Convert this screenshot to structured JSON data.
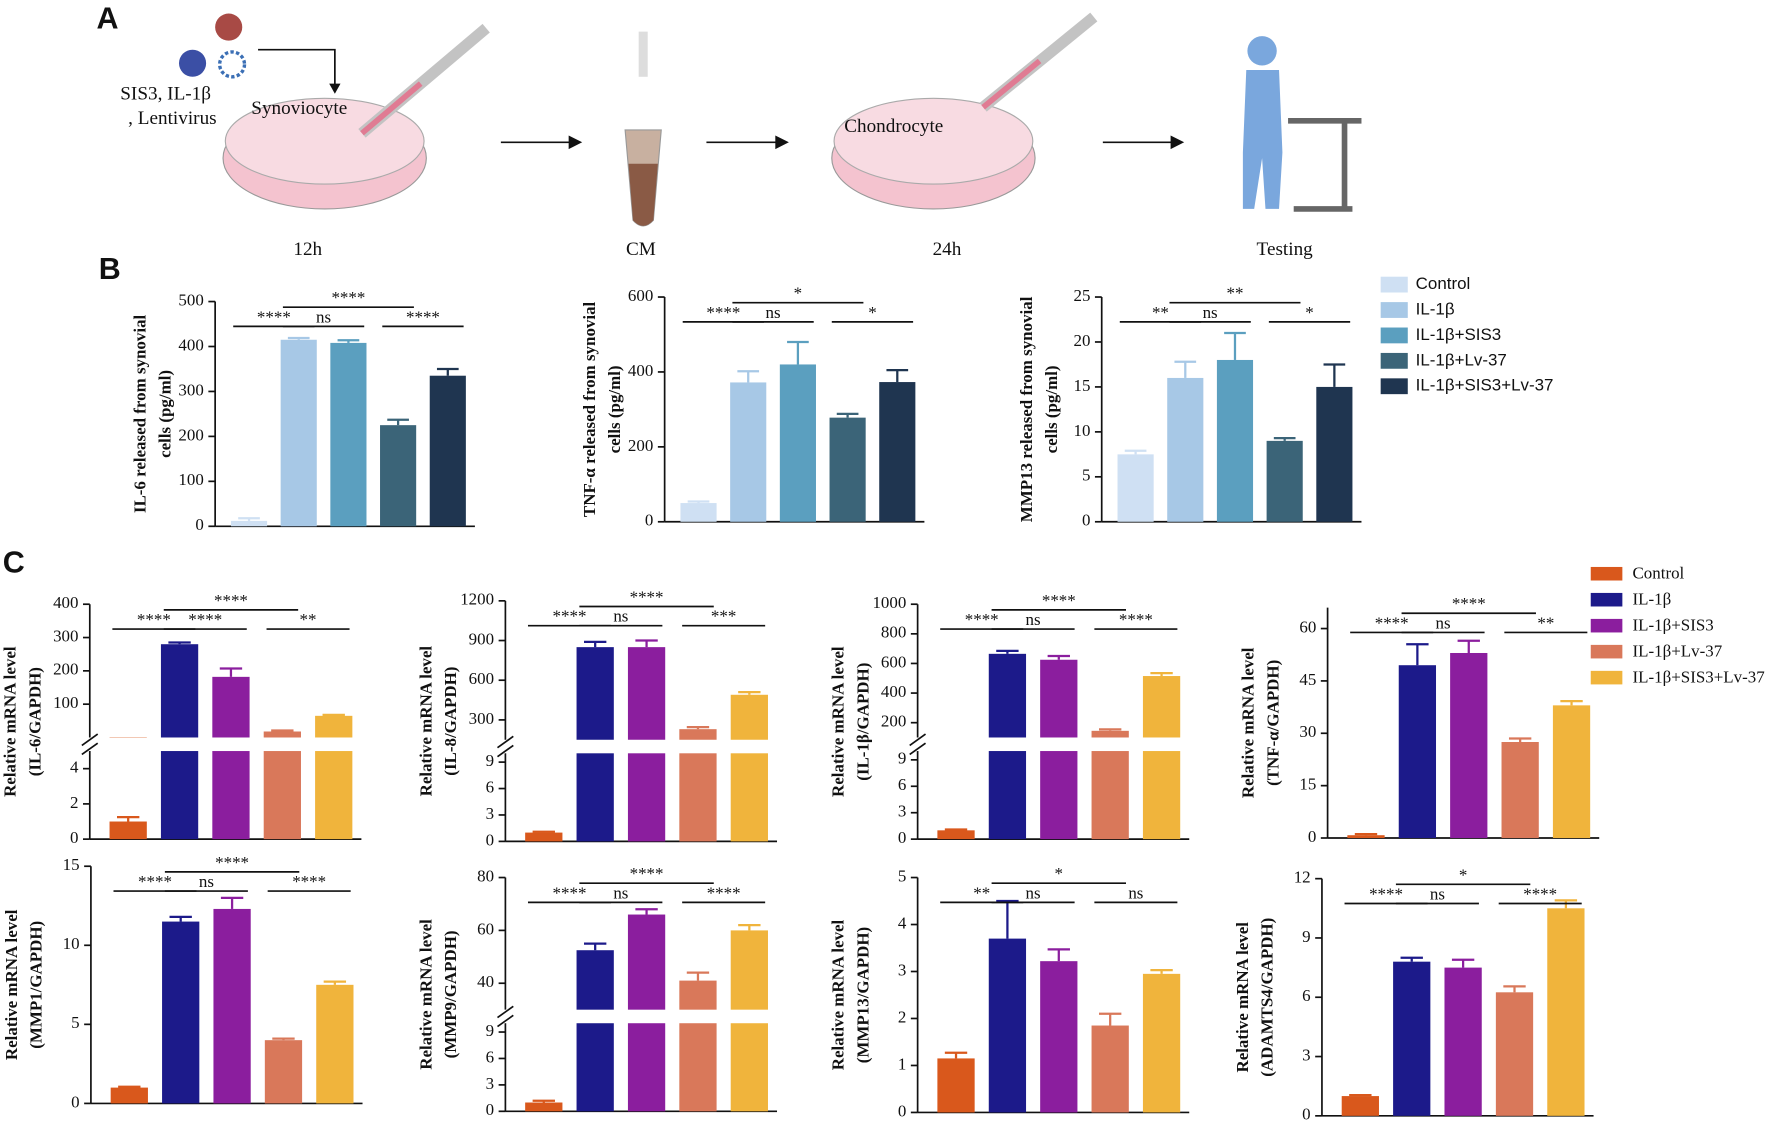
{
  "panel_a": {
    "letter": "A",
    "treatment": [
      "SIS3, IL-1β",
      ", Lentivirus"
    ],
    "dish1": "Synoviocyte",
    "dish2": "Chondrocyte",
    "steps": [
      "12h",
      "CM",
      "24h",
      "Testing"
    ]
  },
  "panel_b": {
    "letter": "B"
  },
  "panel_c": {
    "letter": "C"
  },
  "chart_data": [
    {
      "type": "bar",
      "ylabel": [
        "IL-6 released from synovial",
        "cells (pg/ml)"
      ],
      "values": [
        12,
        415,
        408,
        225,
        335
      ],
      "errors": [
        6,
        4,
        6,
        12,
        15
      ],
      "colors": [
        "#cfe0f3",
        "#a7c8e6",
        "#5b9fbf",
        "#3b6478",
        "#1f3550"
      ],
      "ylim": [
        0,
        500
      ],
      "yticks": [
        0,
        100,
        200,
        300,
        400,
        500
      ],
      "brackets": [
        {
          "label": "****",
          "from": 0,
          "to": 1
        },
        {
          "label": "ns",
          "from": 1,
          "to": 2
        },
        {
          "label": "****",
          "from": 1,
          "to": 3
        },
        {
          "label": "****",
          "from": 3,
          "to": 4
        }
      ]
    },
    {
      "type": "bar",
      "ylabel": [
        "TNF-α released from synovial",
        "cells (pg/ml)"
      ],
      "values": [
        50,
        372,
        420,
        278,
        373
      ],
      "errors": [
        4,
        30,
        60,
        10,
        32
      ],
      "colors": [
        "#cfe0f3",
        "#a7c8e6",
        "#5b9fbf",
        "#3b6478",
        "#1f3550"
      ],
      "ylim": [
        0,
        600
      ],
      "yticks": [
        0,
        200,
        400,
        600
      ],
      "brackets": [
        {
          "label": "****",
          "from": 0,
          "to": 1
        },
        {
          "label": "ns",
          "from": 1,
          "to": 2
        },
        {
          "label": "*",
          "from": 1,
          "to": 3
        },
        {
          "label": "*",
          "from": 3,
          "to": 4
        }
      ]
    },
    {
      "type": "bar",
      "ylabel": [
        "MMP13 released from synovial",
        "cells (pg/ml)"
      ],
      "values": [
        7.5,
        16,
        18,
        9,
        15
      ],
      "errors": [
        0.4,
        1.8,
        3,
        0.3,
        2.5
      ],
      "colors": [
        "#cfe0f3",
        "#a7c8e6",
        "#5b9fbf",
        "#3b6478",
        "#1f3550"
      ],
      "ylim": [
        0,
        25
      ],
      "yticks": [
        0,
        5,
        10,
        15,
        20,
        25
      ],
      "categories": [
        "Control",
        "IL-1β",
        "IL-1β+SIS3",
        "IL-1β+Lv-37",
        "IL-1β+SIS3+Lv-37"
      ],
      "brackets": [
        {
          "label": "**",
          "from": 0,
          "to": 1
        },
        {
          "label": "ns",
          "from": 1,
          "to": 2
        },
        {
          "label": "**",
          "from": 1,
          "to": 3
        },
        {
          "label": "*",
          "from": 3,
          "to": 4
        }
      ]
    },
    {
      "type": "bar",
      "ylabel": [
        "Relative mRNA level",
        "(IL-6/GAPDH)"
      ],
      "values": [
        1.0,
        280,
        182,
        18,
        65
      ],
      "errors": [
        0.25,
        5,
        25,
        3,
        3
      ],
      "colors": [
        "#d9581c",
        "#1c1a8a",
        "#8b1e9e",
        "#d9785a",
        "#f0b43c"
      ],
      "ylim": [
        0,
        5
      ],
      "yticks": [
        0,
        2,
        4
      ],
      "y_break": {
        "ylim": [
          0,
          400
        ],
        "yticks": [
          100,
          200,
          300,
          400
        ]
      },
      "brackets": [
        {
          "label": "****",
          "from": 0,
          "to": 1
        },
        {
          "label": "****",
          "from": 1,
          "to": 2
        },
        {
          "label": "****",
          "from": 1,
          "to": 3
        },
        {
          "label": "**",
          "from": 3,
          "to": 4
        }
      ]
    },
    {
      "type": "bar",
      "ylabel": [
        "Relative mRNA level",
        "(IL-8/GAPDH)"
      ],
      "values": [
        1.0,
        850,
        850,
        230,
        490
      ],
      "errors": [
        0.1,
        40,
        50,
        15,
        20
      ],
      "colors": [
        "#d9581c",
        "#1c1a8a",
        "#8b1e9e",
        "#d9785a",
        "#f0b43c"
      ],
      "ylim": [
        0,
        10
      ],
      "yticks": [
        0,
        3,
        6,
        9
      ],
      "y_break": {
        "ylim": [
          150,
          1200
        ],
        "yticks": [
          300,
          600,
          900,
          1200
        ]
      },
      "brackets": [
        {
          "label": "****",
          "from": 0,
          "to": 1
        },
        {
          "label": "ns",
          "from": 1,
          "to": 2
        },
        {
          "label": "****",
          "from": 1,
          "to": 3
        },
        {
          "label": "***",
          "from": 3,
          "to": 4
        }
      ]
    },
    {
      "type": "bar",
      "ylabel": [
        "Relative mRNA level",
        "(IL-1β/GAPDH)"
      ],
      "values": [
        1.0,
        665,
        625,
        145,
        515
      ],
      "errors": [
        0.1,
        20,
        25,
        10,
        20
      ],
      "colors": [
        "#d9581c",
        "#1c1a8a",
        "#8b1e9e",
        "#d9785a",
        "#f0b43c"
      ],
      "ylim": [
        0,
        10
      ],
      "yticks": [
        0,
        3,
        6,
        9
      ],
      "y_break": {
        "ylim": [
          100,
          1000
        ],
        "yticks": [
          200,
          400,
          600,
          800,
          1000
        ]
      },
      "brackets": [
        {
          "label": "****",
          "from": 0,
          "to": 1
        },
        {
          "label": "ns",
          "from": 1,
          "to": 2
        },
        {
          "label": "****",
          "from": 1,
          "to": 3
        },
        {
          "label": "****",
          "from": 3,
          "to": 4
        }
      ]
    },
    {
      "type": "bar",
      "ylabel": [
        "Relative mRNA level",
        "(TNF-α/GAPDH)"
      ],
      "values": [
        0.8,
        49.5,
        53,
        27.5,
        38
      ],
      "errors": [
        0.3,
        6,
        3.5,
        1,
        1.2
      ],
      "colors": [
        "#d9581c",
        "#1c1a8a",
        "#8b1e9e",
        "#d9785a",
        "#f0b43c"
      ],
      "ylim": [
        0,
        66
      ],
      "yticks": [
        0,
        15,
        30,
        45,
        60
      ],
      "categories": [
        "Control",
        "IL-1β",
        "IL-1β+SIS3",
        "IL-1β+Lv-37",
        "IL-1β+SIS3+Lv-37"
      ],
      "brackets": [
        {
          "label": "****",
          "from": 0,
          "to": 1
        },
        {
          "label": "ns",
          "from": 1,
          "to": 2
        },
        {
          "label": "****",
          "from": 1,
          "to": 3
        },
        {
          "label": "**",
          "from": 3,
          "to": 4
        }
      ]
    },
    {
      "type": "bar",
      "ylabel": [
        "Relative mRNA level",
        "(MMP1/GAPDH)"
      ],
      "values": [
        1.0,
        11.5,
        12.3,
        4.0,
        7.5
      ],
      "errors": [
        0.05,
        0.3,
        0.7,
        0.1,
        0.2
      ],
      "colors": [
        "#d9581c",
        "#1c1a8a",
        "#8b1e9e",
        "#d9785a",
        "#f0b43c"
      ],
      "ylim": [
        0,
        15
      ],
      "yticks": [
        0,
        5,
        10,
        15
      ],
      "brackets": [
        {
          "label": "****",
          "from": 0,
          "to": 1
        },
        {
          "label": "ns",
          "from": 1,
          "to": 2
        },
        {
          "label": "****",
          "from": 1,
          "to": 3
        },
        {
          "label": "****",
          "from": 3,
          "to": 4
        }
      ]
    },
    {
      "type": "bar",
      "ylabel": [
        "Relative mRNA level",
        "(MMP9/GAPDH)"
      ],
      "values": [
        1.0,
        52.5,
        66,
        41,
        60
      ],
      "errors": [
        0.2,
        2.5,
        2,
        3,
        2
      ],
      "colors": [
        "#d9581c",
        "#1c1a8a",
        "#8b1e9e",
        "#d9785a",
        "#f0b43c"
      ],
      "ylim": [
        0,
        10
      ],
      "yticks": [
        0,
        3,
        6,
        9
      ],
      "y_break": {
        "ylim": [
          30,
          80
        ],
        "yticks": [
          40,
          60,
          80
        ]
      },
      "brackets": [
        {
          "label": "****",
          "from": 0,
          "to": 1
        },
        {
          "label": "ns",
          "from": 1,
          "to": 2
        },
        {
          "label": "****",
          "from": 1,
          "to": 3
        },
        {
          "label": "****",
          "from": 3,
          "to": 4
        }
      ]
    },
    {
      "type": "bar",
      "ylabel": [
        "Relative mRNA level",
        "(MMP13/GAPDH)"
      ],
      "values": [
        1.15,
        3.7,
        3.22,
        1.85,
        2.95
      ],
      "errors": [
        0.12,
        0.8,
        0.25,
        0.25,
        0.08
      ],
      "colors": [
        "#d9581c",
        "#1c1a8a",
        "#8b1e9e",
        "#d9785a",
        "#f0b43c"
      ],
      "ylim": [
        0,
        5
      ],
      "yticks": [
        0,
        1,
        2,
        3,
        4,
        5
      ],
      "brackets": [
        {
          "label": "**",
          "from": 0,
          "to": 1
        },
        {
          "label": "ns",
          "from": 1,
          "to": 2
        },
        {
          "label": "*",
          "from": 1,
          "to": 3
        },
        {
          "label": "ns",
          "from": 3,
          "to": 4
        }
      ]
    },
    {
      "type": "bar",
      "ylabel": [
        "Relative mRNA level",
        "(ADAMTS4/GAPDH)"
      ],
      "values": [
        1.0,
        7.8,
        7.5,
        6.25,
        10.5
      ],
      "errors": [
        0.05,
        0.2,
        0.4,
        0.3,
        0.4
      ],
      "colors": [
        "#d9581c",
        "#1c1a8a",
        "#8b1e9e",
        "#d9785a",
        "#f0b43c"
      ],
      "ylim": [
        0,
        12
      ],
      "yticks": [
        0,
        3,
        6,
        9,
        12
      ],
      "brackets": [
        {
          "label": "****",
          "from": 0,
          "to": 1
        },
        {
          "label": "ns",
          "from": 1,
          "to": 2
        },
        {
          "label": "*",
          "from": 1,
          "to": 3
        },
        {
          "label": "****",
          "from": 3,
          "to": 4
        }
      ]
    }
  ]
}
